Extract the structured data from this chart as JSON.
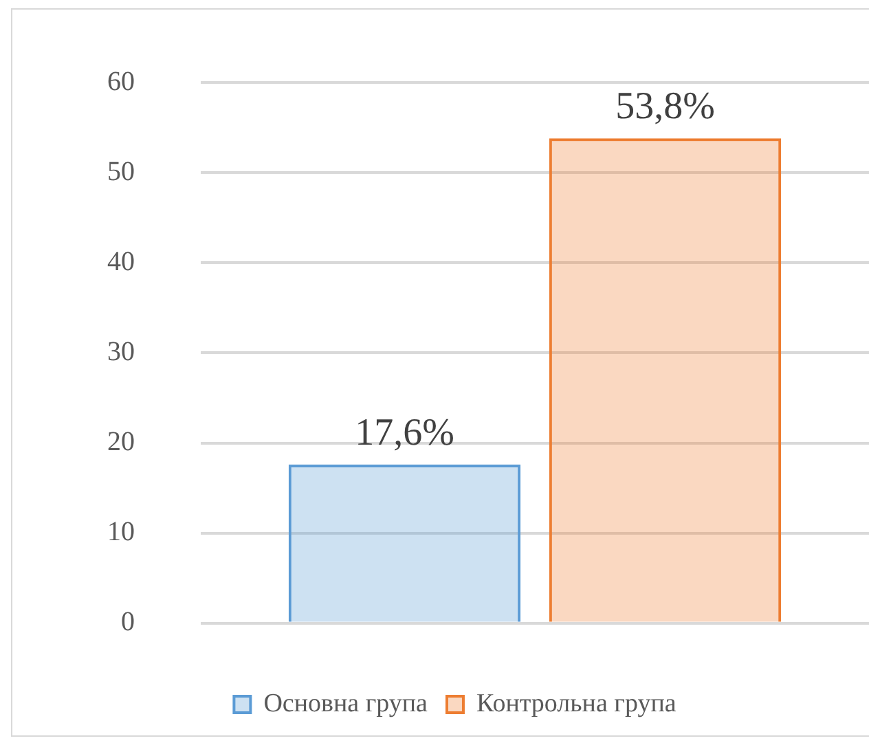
{
  "chart_data": {
    "type": "bar",
    "categories": [
      null
    ],
    "series": [
      {
        "name": "Основна група",
        "color": "#5b9bd5",
        "values": [
          17.6
        ],
        "value_labels": [
          "17,6%"
        ]
      },
      {
        "name": "Контрольна група",
        "color": "#ed7d31",
        "values": [
          53.8
        ],
        "value_labels": [
          "53,8%"
        ]
      }
    ],
    "ylim": [
      0,
      60
    ],
    "yticks": [
      0,
      10,
      20,
      30,
      40,
      50,
      60
    ],
    "grid": "y",
    "legend": "bottom"
  }
}
